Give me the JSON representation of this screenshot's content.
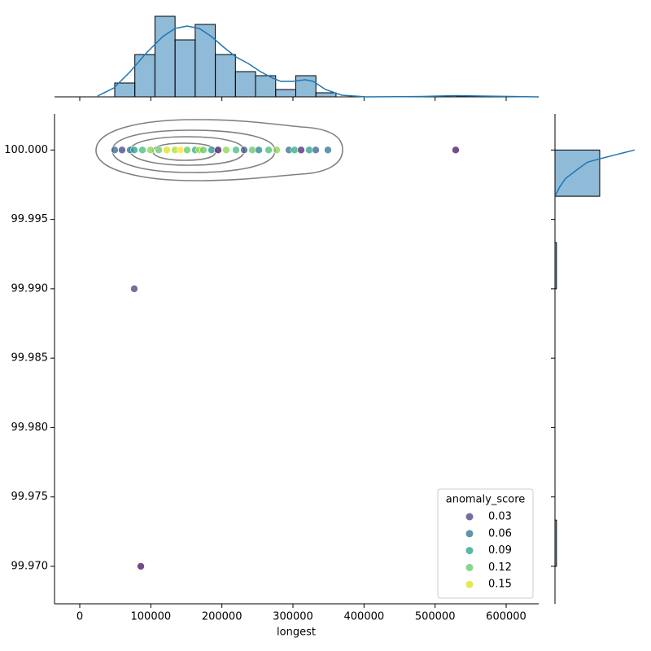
{
  "chart_data": [
    {
      "type": "scatter",
      "x_label": "longest",
      "x": [
        49200,
        59500,
        71000,
        76700,
        88200,
        99600,
        111100,
        122500,
        134000,
        142000,
        151100,
        162600,
        168300,
        174000,
        185500,
        194700,
        206100,
        219900,
        231300,
        242800,
        251900,
        265700,
        277100,
        294300,
        302300,
        311500,
        322900,
        332100,
        349200,
        529000,
        76700,
        85900
      ],
      "y": [
        100,
        100,
        100,
        100,
        100,
        100,
        100,
        100,
        100,
        100,
        100,
        100,
        100,
        100,
        100,
        100,
        100,
        100,
        100,
        100,
        100,
        100,
        100,
        100,
        100,
        100,
        100,
        100,
        100,
        100,
        99.99,
        99.97
      ],
      "colors": [
        "#33638d",
        "#433e85",
        "#2c728e",
        "#1fa088",
        "#3fbc73",
        "#84d44b",
        "#5ec962",
        "#d8e219",
        "#addc30",
        "#fde725",
        "#5ec962",
        "#28ae80",
        "#addc30",
        "#5ec962",
        "#21918c",
        "#46105e",
        "#84d44b",
        "#3fbc73",
        "#3b528b",
        "#5ec962",
        "#26828e",
        "#3fbc73",
        "#84d44b",
        "#2c728e",
        "#28ae80",
        "#482173",
        "#1fa088",
        "#33638d",
        "#2c728e",
        "#46105e",
        "#433e85",
        "#46105e"
      ],
      "xlim": [
        -35500,
        645800
      ],
      "ylim": [
        99.9673,
        100.0026
      ],
      "xticks": [
        0,
        100000,
        200000,
        300000,
        400000,
        500000,
        600000
      ],
      "yticks": [
        {
          "value": 99.97,
          "label": "99.970"
        },
        99.975,
        {
          "value": 99.98,
          "label": "99.980"
        },
        99.985,
        {
          "value": 99.99,
          "label": "99.990"
        },
        99.995,
        {
          "value": 100,
          "label": "100.000"
        }
      ],
      "legend": {
        "title": "anomaly_score",
        "position": "lower right",
        "entries": [
          {
            "label": "0.03",
            "color": "#433e85"
          },
          {
            "label": "0.06",
            "color": "#2c728e"
          },
          {
            "label": "0.09",
            "color": "#1fa088"
          },
          {
            "label": "0.12",
            "color": "#5ec962"
          },
          {
            "label": "0.15",
            "color": "#d8e219"
          }
        ]
      }
    },
    {
      "type": "histogram",
      "orientation": "vertical",
      "bins": [
        49200,
        77510,
        105820,
        134130,
        162440,
        190750,
        219060,
        247370,
        275680,
        303990,
        332300,
        360610,
        388920,
        417230,
        445540,
        473850,
        502160,
        530470,
        558780
      ],
      "values": [
        17,
        52,
        99,
        70,
        89,
        52,
        31,
        26,
        9,
        26,
        5,
        0,
        0,
        0,
        0,
        0,
        0,
        1
      ],
      "color": "#1f77b4",
      "ylim": [
        0,
        104
      ],
      "kde": {
        "x": [
          25200,
          48100,
          71000,
          93900,
          116800,
          134000,
          151100,
          168300,
          185500,
          202600,
          219800,
          237000,
          254200,
          271400,
          282800,
          300000,
          317200,
          328600,
          345800,
          368700,
          403100,
          483200,
          529000,
          563400,
          643500
        ],
        "y": [
          1,
          11,
          31,
          54,
          74,
          84,
          87,
          84,
          74,
          61,
          49,
          41,
          31,
          23,
          19,
          19,
          21,
          19,
          9,
          2,
          0,
          0.5,
          1.5,
          1,
          0
        ]
      }
    },
    {
      "type": "histogram",
      "orientation": "horizontal",
      "bins": [
        99.97,
        99.97333,
        99.97667,
        99.98,
        99.98333,
        99.98667,
        99.99,
        99.99333,
        99.99667,
        100
      ],
      "values": [
        1,
        0,
        0,
        0,
        0,
        0,
        1,
        0,
        30
      ],
      "color": "#1f77b4",
      "xlim": [
        0,
        53.5
      ],
      "kde": {
        "y": [
          99.99677,
          99.99736,
          99.99795,
          99.99853,
          99.99912,
          99.99941,
          99.99971,
          100
        ],
        "x": [
          0.5,
          3.3,
          7.1,
          14.2,
          21.8,
          31.7,
          42.6,
          53.5
        ]
      }
    }
  ]
}
